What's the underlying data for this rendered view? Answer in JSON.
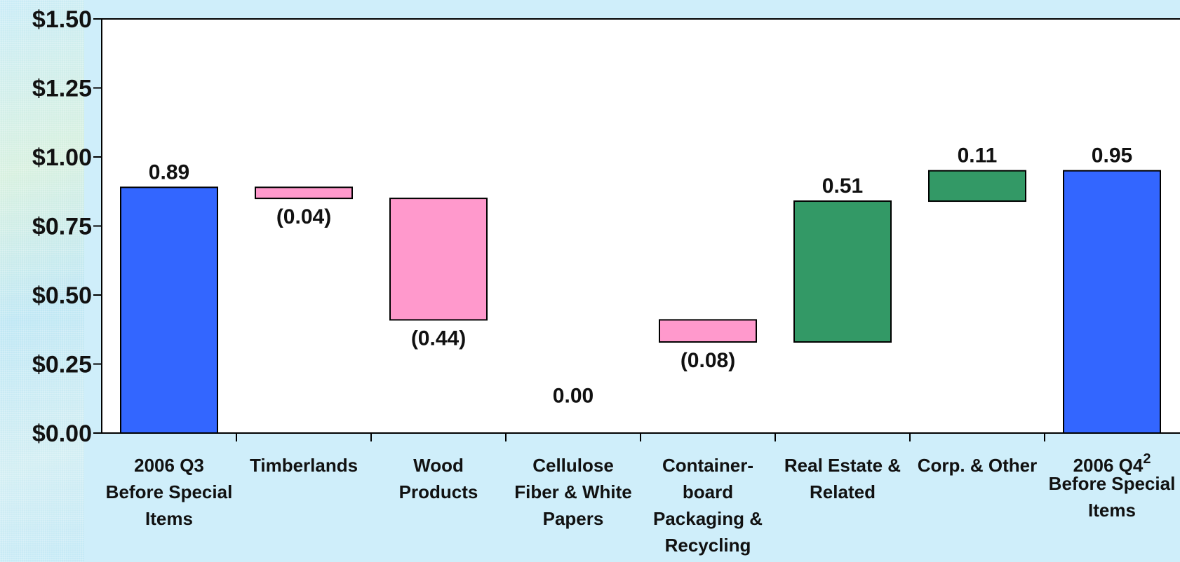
{
  "chart_data": {
    "type": "bar",
    "subtype": "waterfall",
    "title": "",
    "xlabel": "",
    "ylabel": "",
    "ylim": [
      0,
      1.5
    ],
    "yticks": [
      "$0.00",
      "$0.25",
      "$0.50",
      "$0.75",
      "$1.00",
      "$1.25",
      "$1.50"
    ],
    "ytick_values": [
      0,
      0.25,
      0.5,
      0.75,
      1.0,
      1.25,
      1.5
    ],
    "grid": false,
    "legend": "none",
    "colors": {
      "total": "#3366ff",
      "decrease": "#ff99cc",
      "increase": "#339966",
      "plot_background": "#ffffff",
      "page_background": "#cfeefa"
    },
    "categories": [
      {
        "lines": [
          "2006 Q3",
          "Before Special",
          "Items"
        ],
        "sup": ""
      },
      {
        "lines": [
          "Timberlands"
        ],
        "sup": ""
      },
      {
        "lines": [
          "Wood",
          "Products"
        ],
        "sup": ""
      },
      {
        "lines": [
          "Cellulose",
          "Fiber & White",
          "Papers"
        ],
        "sup": ""
      },
      {
        "lines": [
          "Container-",
          "board",
          "Packaging &",
          "Recycling"
        ],
        "sup": ""
      },
      {
        "lines": [
          "Real Estate &",
          "Related"
        ],
        "sup": ""
      },
      {
        "lines": [
          "Corp. & Other"
        ],
        "sup": ""
      },
      {
        "lines": [
          "2006 Q4",
          "Before Special",
          "Items"
        ],
        "sup": "2"
      }
    ],
    "bars": [
      {
        "kind": "total",
        "start": 0,
        "end": 0.89,
        "label": "0.89"
      },
      {
        "kind": "decrease",
        "start": 0.89,
        "end": 0.85,
        "label": "(0.04)"
      },
      {
        "kind": "decrease",
        "start": 0.85,
        "end": 0.41,
        "label": "(0.44)"
      },
      {
        "kind": "zero",
        "start": 0.41,
        "end": 0.41,
        "label": "0.00"
      },
      {
        "kind": "decrease",
        "start": 0.41,
        "end": 0.33,
        "label": "(0.08)"
      },
      {
        "kind": "increase",
        "start": 0.33,
        "end": 0.84,
        "label": "0.51"
      },
      {
        "kind": "increase",
        "start": 0.84,
        "end": 0.95,
        "label": "0.11"
      },
      {
        "kind": "total",
        "start": 0,
        "end": 0.95,
        "label": "0.95"
      }
    ]
  }
}
